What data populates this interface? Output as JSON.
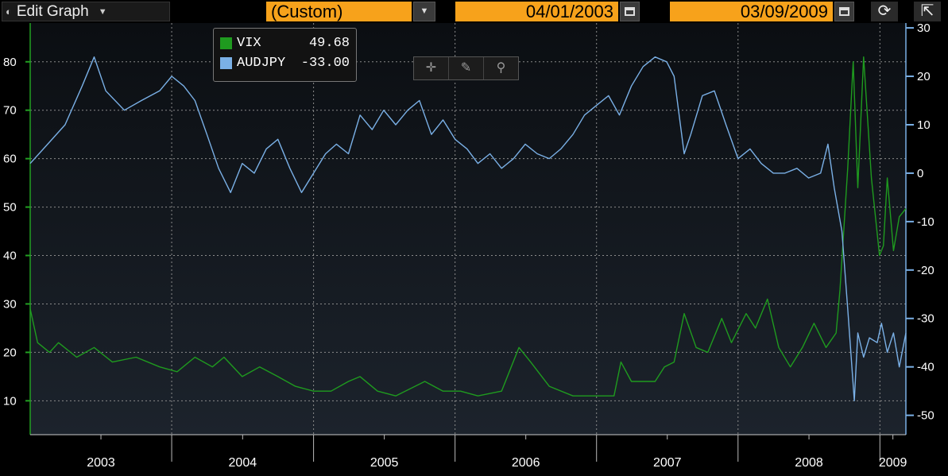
{
  "toolbar": {
    "edit_graph_label": "Edit Graph",
    "period_select": "(Custom)",
    "start_date": "04/01/2003",
    "end_date": "03/09/2009"
  },
  "icons": {
    "graph": "graph-icon",
    "dropdown": "chevron-down-icon",
    "calendar": "calendar-icon",
    "refresh": "refresh-icon",
    "popout": "popout-icon",
    "crosshair": "crosshair-icon",
    "pencil": "pencil-icon",
    "zoom": "magnifier-icon"
  },
  "colors": {
    "background": "#000000",
    "plot_bg_top": "#0b0e12",
    "plot_bg_bottom": "#1c232c",
    "left_axis": "#22a022",
    "right_axis": "#7ab0e6",
    "toolbar_accent": "#f7a21b",
    "grid": "#8a8a8a"
  },
  "chart_data": {
    "type": "line",
    "x_range": [
      "2003-01-01",
      "2009-03-09"
    ],
    "x_ticks": [
      "2003",
      "2004",
      "2005",
      "2006",
      "2007",
      "2008",
      "2009"
    ],
    "left_axis": {
      "ticks": [
        10,
        20,
        30,
        40,
        50,
        60,
        70,
        80
      ],
      "range": [
        3,
        88
      ]
    },
    "right_axis": {
      "ticks": [
        30,
        20,
        10,
        0,
        -10,
        -20,
        -30,
        -40,
        -50
      ],
      "range": [
        -54,
        31
      ]
    },
    "grid": true,
    "legend": {
      "position": "top-left",
      "entries": [
        {
          "name": "VIX",
          "value": "49.68",
          "color": "#1f9b1f"
        },
        {
          "name": "AUDJPY",
          "value": "-33.00",
          "color": "#7ab0e6"
        }
      ]
    },
    "series": [
      {
        "name": "VIX",
        "axis": "left",
        "color": "#1f9b1f",
        "points": [
          [
            "2003-01-01",
            29
          ],
          [
            "2003-01-20",
            22
          ],
          [
            "2003-02-20",
            20
          ],
          [
            "2003-03-15",
            22
          ],
          [
            "2003-05-01",
            19
          ],
          [
            "2003-06-15",
            21
          ],
          [
            "2003-08-01",
            18
          ],
          [
            "2003-10-01",
            19
          ],
          [
            "2003-12-01",
            17
          ],
          [
            "2004-01-15",
            16
          ],
          [
            "2004-03-01",
            19
          ],
          [
            "2004-04-15",
            17
          ],
          [
            "2004-05-15",
            19
          ],
          [
            "2004-07-01",
            15
          ],
          [
            "2004-08-15",
            17
          ],
          [
            "2004-10-01",
            15
          ],
          [
            "2004-11-15",
            13
          ],
          [
            "2005-01-01",
            12
          ],
          [
            "2005-02-15",
            12
          ],
          [
            "2005-04-01",
            14
          ],
          [
            "2005-05-01",
            15
          ],
          [
            "2005-06-15",
            12
          ],
          [
            "2005-08-01",
            11
          ],
          [
            "2005-10-15",
            14
          ],
          [
            "2005-12-01",
            12
          ],
          [
            "2006-01-15",
            12
          ],
          [
            "2006-03-01",
            11
          ],
          [
            "2006-05-01",
            12
          ],
          [
            "2006-06-15",
            21
          ],
          [
            "2006-07-15",
            18
          ],
          [
            "2006-09-01",
            13
          ],
          [
            "2006-11-01",
            11
          ],
          [
            "2007-01-01",
            11
          ],
          [
            "2007-02-15",
            11
          ],
          [
            "2007-03-05",
            18
          ],
          [
            "2007-04-01",
            14
          ],
          [
            "2007-06-01",
            14
          ],
          [
            "2007-06-25",
            17
          ],
          [
            "2007-07-20",
            18
          ],
          [
            "2007-08-15",
            28
          ],
          [
            "2007-09-15",
            21
          ],
          [
            "2007-10-15",
            20
          ],
          [
            "2007-11-20",
            27
          ],
          [
            "2007-12-15",
            22
          ],
          [
            "2008-01-22",
            28
          ],
          [
            "2008-02-15",
            25
          ],
          [
            "2008-03-17",
            31
          ],
          [
            "2008-04-15",
            21
          ],
          [
            "2008-05-15",
            17
          ],
          [
            "2008-06-15",
            21
          ],
          [
            "2008-07-15",
            26
          ],
          [
            "2008-08-15",
            21
          ],
          [
            "2008-09-10",
            24
          ],
          [
            "2008-09-20",
            33
          ],
          [
            "2008-10-10",
            58
          ],
          [
            "2008-10-24",
            80
          ],
          [
            "2008-11-05",
            54
          ],
          [
            "2008-11-20",
            81
          ],
          [
            "2008-12-10",
            56
          ],
          [
            "2008-12-31",
            40
          ],
          [
            "2009-01-10",
            42
          ],
          [
            "2009-01-20",
            56
          ],
          [
            "2009-02-05",
            41
          ],
          [
            "2009-02-20",
            48
          ],
          [
            "2009-03-09",
            49.68
          ]
        ]
      },
      {
        "name": "AUDJPY",
        "axis": "right",
        "color": "#7ab0e6",
        "points": [
          [
            "2003-01-01",
            2
          ],
          [
            "2003-02-15",
            6
          ],
          [
            "2003-04-01",
            10
          ],
          [
            "2003-05-15",
            18
          ],
          [
            "2003-06-15",
            24
          ],
          [
            "2003-07-15",
            17
          ],
          [
            "2003-09-01",
            13
          ],
          [
            "2003-10-15",
            15
          ],
          [
            "2003-12-01",
            17
          ],
          [
            "2004-01-01",
            20
          ],
          [
            "2004-02-01",
            18
          ],
          [
            "2004-03-01",
            15
          ],
          [
            "2004-04-01",
            8
          ],
          [
            "2004-05-01",
            1
          ],
          [
            "2004-06-01",
            -4
          ],
          [
            "2004-07-01",
            2
          ],
          [
            "2004-08-01",
            0
          ],
          [
            "2004-09-01",
            5
          ],
          [
            "2004-10-01",
            7
          ],
          [
            "2004-11-01",
            1
          ],
          [
            "2004-12-01",
            -4
          ],
          [
            "2005-01-01",
            0
          ],
          [
            "2005-02-01",
            4
          ],
          [
            "2005-03-01",
            6
          ],
          [
            "2005-04-01",
            4
          ],
          [
            "2005-05-01",
            12
          ],
          [
            "2005-06-01",
            9
          ],
          [
            "2005-07-01",
            13
          ],
          [
            "2005-08-01",
            10
          ],
          [
            "2005-09-01",
            13
          ],
          [
            "2005-10-01",
            15
          ],
          [
            "2005-11-01",
            8
          ],
          [
            "2005-12-01",
            11
          ],
          [
            "2006-01-01",
            7
          ],
          [
            "2006-02-01",
            5
          ],
          [
            "2006-03-01",
            2
          ],
          [
            "2006-04-01",
            4
          ],
          [
            "2006-05-01",
            1
          ],
          [
            "2006-06-01",
            3
          ],
          [
            "2006-07-01",
            6
          ],
          [
            "2006-08-01",
            4
          ],
          [
            "2006-09-01",
            3
          ],
          [
            "2006-10-01",
            5
          ],
          [
            "2006-11-01",
            8
          ],
          [
            "2006-12-01",
            12
          ],
          [
            "2007-01-01",
            14
          ],
          [
            "2007-02-01",
            16
          ],
          [
            "2007-03-01",
            12
          ],
          [
            "2007-04-01",
            18
          ],
          [
            "2007-05-01",
            22
          ],
          [
            "2007-06-01",
            24
          ],
          [
            "2007-07-01",
            23
          ],
          [
            "2007-07-20",
            20
          ],
          [
            "2007-08-15",
            4
          ],
          [
            "2007-09-01",
            8
          ],
          [
            "2007-10-01",
            16
          ],
          [
            "2007-11-01",
            17
          ],
          [
            "2007-12-01",
            10
          ],
          [
            "2008-01-01",
            3
          ],
          [
            "2008-02-01",
            5
          ],
          [
            "2008-03-01",
            2
          ],
          [
            "2008-04-01",
            0
          ],
          [
            "2008-05-01",
            0
          ],
          [
            "2008-06-01",
            1
          ],
          [
            "2008-07-01",
            -1
          ],
          [
            "2008-08-01",
            0
          ],
          [
            "2008-08-20",
            6
          ],
          [
            "2008-09-05",
            -3
          ],
          [
            "2008-09-25",
            -12
          ],
          [
            "2008-10-10",
            -28
          ],
          [
            "2008-10-27",
            -47
          ],
          [
            "2008-11-05",
            -33
          ],
          [
            "2008-11-20",
            -38
          ],
          [
            "2008-12-05",
            -34
          ],
          [
            "2008-12-25",
            -35
          ],
          [
            "2009-01-05",
            -31
          ],
          [
            "2009-01-20",
            -37
          ],
          [
            "2009-02-05",
            -33
          ],
          [
            "2009-02-20",
            -40
          ],
          [
            "2009-03-09",
            -33
          ]
        ]
      }
    ]
  }
}
